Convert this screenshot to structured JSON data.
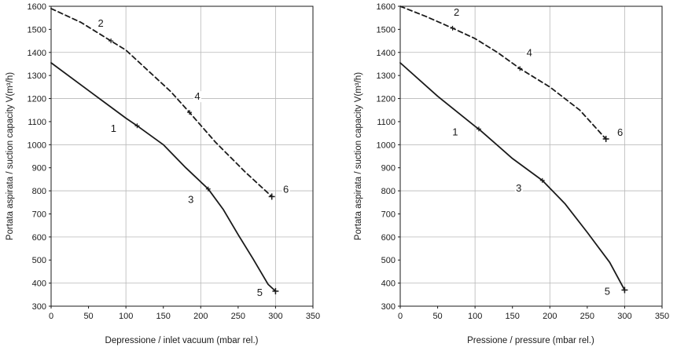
{
  "chart_data": [
    {
      "type": "line",
      "title": "",
      "xlabel": "Depressione / inlet vacuum (mbar rel.)",
      "ylabel": "Portata aspirata / suction capacity V(m³/h)",
      "xlim": [
        0,
        350
      ],
      "ylim": [
        300,
        1600
      ],
      "x_ticks": [
        "0",
        "50",
        "100",
        "150",
        "200",
        "250",
        "300",
        "350"
      ],
      "y_ticks": [
        "300",
        "400",
        "500",
        "600",
        "700",
        "800",
        "900",
        "1000",
        "1100",
        "1200",
        "1300",
        "1400",
        "1500",
        "1600"
      ],
      "grid": "major gridlines at every 100 mbar and every 200 m³/h",
      "series": [
        {
          "style": "solid",
          "color": "#1a1a1a",
          "x": [
            0,
            50,
            100,
            115,
            150,
            180,
            210,
            230,
            250,
            270,
            290,
            300
          ],
          "y": [
            1355,
            1235,
            1115,
            1082,
            1000,
            900,
            808,
            720,
            610,
            505,
            395,
            365
          ]
        },
        {
          "style": "dashed",
          "color": "#1a1a1a",
          "x": [
            0,
            40,
            80,
            100,
            130,
            160,
            185,
            220,
            260,
            295
          ],
          "y": [
            1590,
            1530,
            1450,
            1410,
            1320,
            1230,
            1140,
            1010,
            880,
            775
          ]
        }
      ],
      "markers": [
        {
          "label": "2",
          "x": 80,
          "y": 1450
        },
        {
          "label": "4",
          "x": 185,
          "y": 1140
        },
        {
          "label": "6",
          "x": 295,
          "y": 775
        },
        {
          "label": "1",
          "x": 115,
          "y": 1082
        },
        {
          "label": "3",
          "x": 210,
          "y": 808
        },
        {
          "label": "5",
          "x": 300,
          "y": 365
        }
      ]
    },
    {
      "type": "line",
      "title": "",
      "xlabel": "Pressione / pressure (mbar rel.)",
      "ylabel": "Portata aspirata / suction capacity V(m³/h)",
      "xlim": [
        0,
        350
      ],
      "ylim": [
        300,
        1600
      ],
      "x_ticks": [
        "0",
        "50",
        "100",
        "150",
        "200",
        "250",
        "300",
        "350"
      ],
      "y_ticks": [
        "300",
        "400",
        "500",
        "600",
        "700",
        "800",
        "900",
        "1000",
        "1100",
        "1200",
        "1300",
        "1400",
        "1500",
        "1600"
      ],
      "grid": "major gridlines at every 100 mbar and every 200 m³/h",
      "series": [
        {
          "style": "solid",
          "color": "#1a1a1a",
          "x": [
            0,
            50,
            100,
            105,
            150,
            190,
            220,
            250,
            280,
            300
          ],
          "y": [
            1355,
            1210,
            1080,
            1068,
            940,
            845,
            745,
            620,
            490,
            370
          ]
        },
        {
          "style": "dashed",
          "color": "#1a1a1a",
          "x": [
            0,
            35,
            70,
            100,
            130,
            160,
            200,
            240,
            275
          ],
          "y": [
            1600,
            1555,
            1505,
            1460,
            1400,
            1330,
            1250,
            1150,
            1025
          ]
        }
      ],
      "markers": [
        {
          "label": "2",
          "x": 70,
          "y": 1505
        },
        {
          "label": "4",
          "x": 160,
          "y": 1330
        },
        {
          "label": "6",
          "x": 275,
          "y": 1025
        },
        {
          "label": "1",
          "x": 105,
          "y": 1068
        },
        {
          "label": "3",
          "x": 190,
          "y": 845
        },
        {
          "label": "5",
          "x": 300,
          "y": 370
        }
      ]
    }
  ]
}
